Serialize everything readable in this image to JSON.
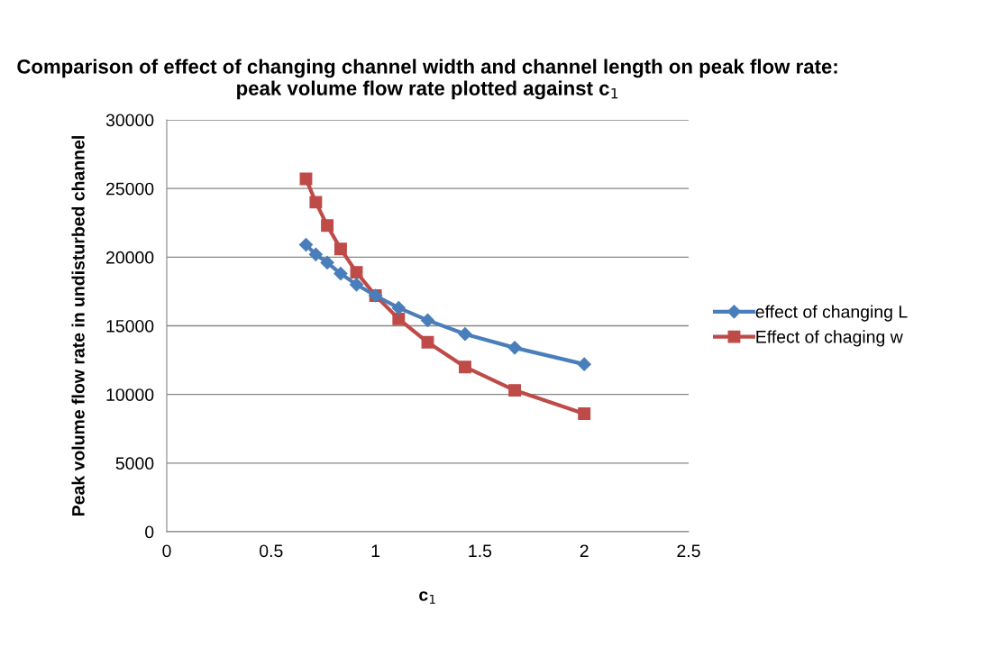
{
  "chart_data": {
    "type": "line",
    "title": "Comparison of effect of changing channel width and channel length on peak flow rate: peak volume flow rate plotted against c$_{1}$",
    "xlabel": "c$_{1}$",
    "ylabel": "Peak volume flow rate in undisturbed channel",
    "x": [
      0.667,
      0.714,
      0.769,
      0.833,
      0.909,
      1.0,
      1.111,
      1.25,
      1.429,
      1.667,
      2.0
    ],
    "series": [
      {
        "name": "effect of changing L",
        "color": "#4a7ebb",
        "marker": "diamond",
        "values": [
          20900,
          20200,
          19600,
          18800,
          18000,
          17200,
          16300,
          15400,
          14400,
          13400,
          12200
        ]
      },
      {
        "name": "Effect of chaging w",
        "color": "#be4b48",
        "marker": "square",
        "values": [
          25700,
          24000,
          22300,
          20600,
          18900,
          17200,
          15500,
          13800,
          12000,
          10300,
          8600
        ]
      }
    ],
    "xlim": [
      0,
      2.5
    ],
    "xticks": [
      0,
      0.5,
      1,
      1.5,
      2,
      2.5
    ],
    "ylim": [
      0,
      30000
    ],
    "yticks": [
      0,
      5000,
      10000,
      15000,
      20000,
      25000,
      30000
    ],
    "grid": "y",
    "legend": "right",
    "line_style": "solid"
  }
}
